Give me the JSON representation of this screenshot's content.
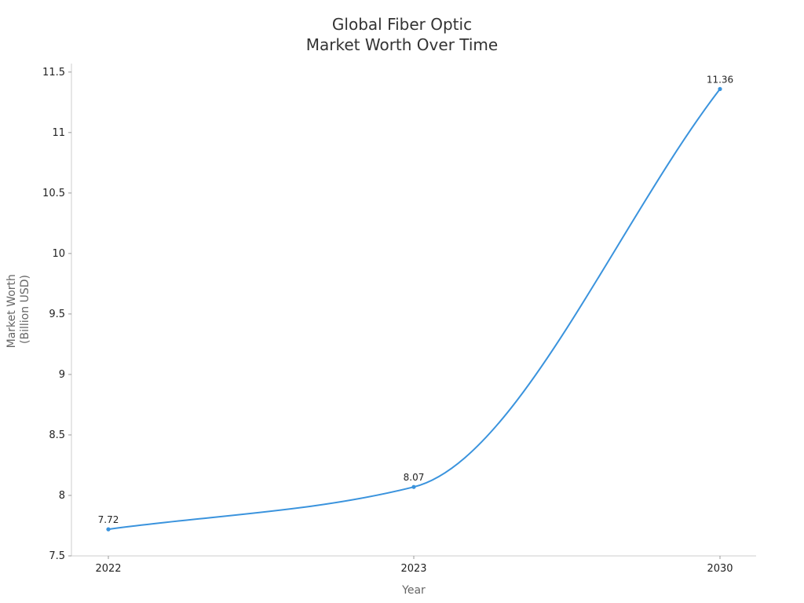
{
  "chart_data": {
    "type": "line",
    "title_lines": [
      "Global Fiber Optic",
      "Market Worth Over Time"
    ],
    "xlabel": "Year",
    "ylabel_lines": [
      "Market Worth",
      "(Billion USD)"
    ],
    "categories": [
      "2022",
      "2023",
      "2030"
    ],
    "series": [
      {
        "values": [
          7.72,
          8.07,
          11.36
        ]
      }
    ],
    "data_labels": [
      "7.72",
      "8.07",
      "11.36"
    ],
    "y_ticks": [
      7.5,
      8,
      8.5,
      9,
      9.5,
      10,
      10.5,
      11,
      11.5
    ],
    "y_tick_labels": [
      "7.5",
      "8",
      "8.5",
      "9",
      "9.5",
      "10",
      "10.5",
      "11",
      "11.5"
    ],
    "ylim": [
      7.5,
      11.57
    ],
    "grid": false,
    "line_color": "#3a93dd",
    "axis_color": "#cccccc"
  }
}
